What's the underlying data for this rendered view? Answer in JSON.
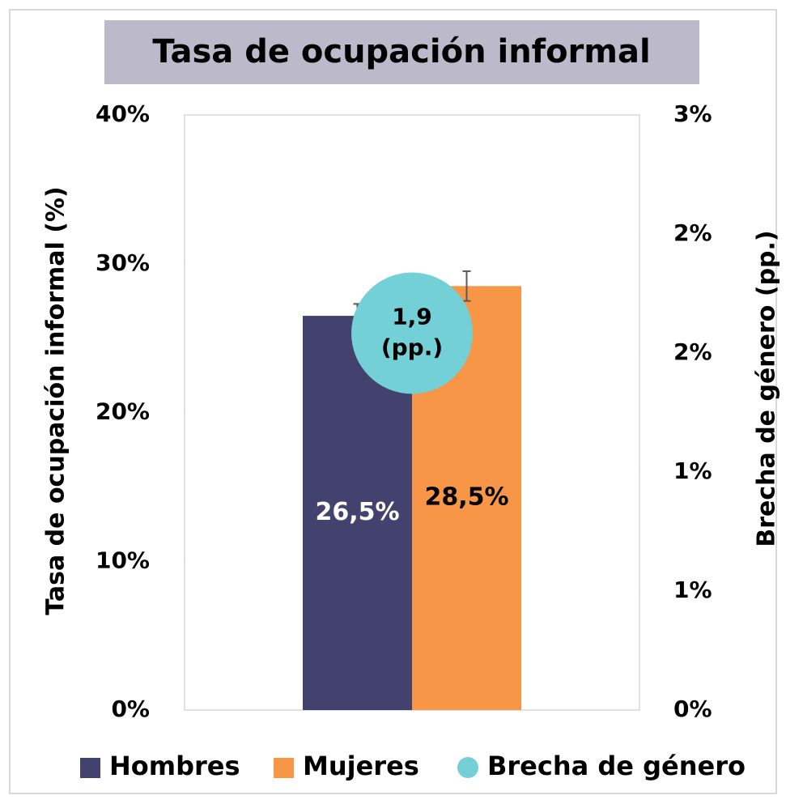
{
  "chart_data": {
    "type": "bar",
    "title": "Tasa de ocupación informal",
    "ylabel": "Tasa de ocupación informal (%)",
    "y2label": "Brecha de género (pp.)",
    "categories": [
      null
    ],
    "series": [
      {
        "name": "Hombres",
        "color": "#43426e",
        "label_color": "#ffffff",
        "values": [
          26.5
        ],
        "errors": [
          0.8
        ],
        "value_labels": [
          "26,5%"
        ]
      },
      {
        "name": "Mujeres",
        "color": "#f79646",
        "label_color": "#000000",
        "values": [
          28.5
        ],
        "errors": [
          1.0
        ],
        "value_labels": [
          "28,5%"
        ]
      },
      {
        "name": "Brecha de género",
        "type": "scatter",
        "axis": "y2",
        "color": "#72d0d6",
        "label_color": "#000000",
        "values": [
          1.9
        ],
        "value_labels": [
          [
            "1,9",
            "(pp.)"
          ]
        ]
      }
    ],
    "ylim": [
      0,
      40
    ],
    "yticks": [
      {
        "value": 0,
        "label": "0%"
      },
      {
        "value": 10,
        "label": "10%"
      },
      {
        "value": 20,
        "label": "20%"
      },
      {
        "value": 30,
        "label": "30%"
      },
      {
        "value": 40,
        "label": "40%"
      }
    ],
    "y2lim": [
      0,
      3
    ],
    "y2ticks": [
      {
        "value": 0,
        "label": "0%"
      },
      {
        "value": 0.6,
        "label": "1%"
      },
      {
        "value": 1.2,
        "label": "1%"
      },
      {
        "value": 1.8,
        "label": "2%"
      },
      {
        "value": 2.4,
        "label": "2%"
      },
      {
        "value": 3,
        "label": "3%"
      }
    ],
    "legend": "bottom"
  }
}
